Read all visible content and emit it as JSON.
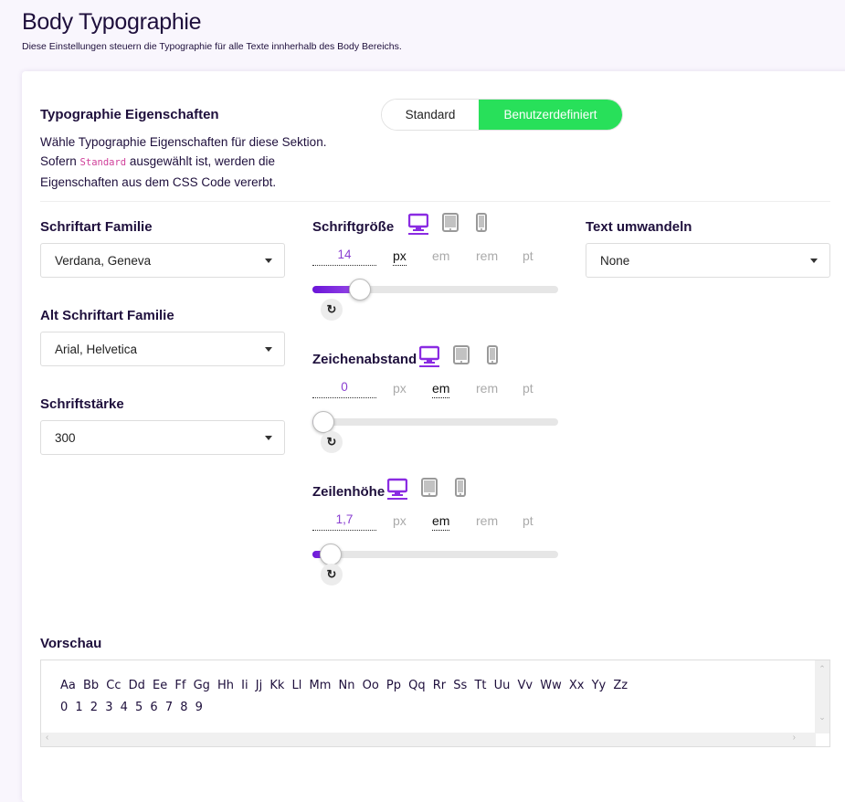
{
  "header": {
    "title": "Body Typographie",
    "subtitle": "Diese Einstellungen steuern die Typographie für alle Texte innherhalb des Body Bereichs."
  },
  "section": {
    "title": "Typographie Eigenschaften",
    "desc_line1": "Wähle Typographie Eigenschaften für diese Sektion.",
    "desc_line2_pre": "Sofern",
    "desc_line2_code": "Standard",
    "desc_line2_post": "ausgewählt ist, werden die",
    "desc_line3": "Eigenschaften aus dem CSS Code vererbt."
  },
  "toggle": {
    "options": [
      "Standard",
      "Benutzerdefiniert"
    ],
    "selected": "Benutzerdefiniert",
    "active_color": "#28e05a"
  },
  "selects": [
    {
      "label": "Schriftart Familie",
      "value": "Verdana, Geneva"
    },
    {
      "label": "Alt Schriftart Familie",
      "value": "Arial, Helvetica"
    },
    {
      "label": "Schriftstärke",
      "value": "300"
    },
    {
      "label": "Text umwandeln",
      "value": "None"
    }
  ],
  "devices": [
    "desktop-icon",
    "tablet-icon",
    "mobile-icon"
  ],
  "active_device": "desktop",
  "units": [
    "px",
    "em",
    "rem",
    "pt"
  ],
  "sliders": [
    {
      "label": "Schriftgröße",
      "value": "14",
      "unit": "px",
      "fraction": 0.15
    },
    {
      "label": "Zeichenabstand",
      "value": "0",
      "unit": "em",
      "fraction": 0
    },
    {
      "label": "Zeilenhöhe",
      "value": "1,7",
      "unit": "em",
      "fraction": 0.03
    }
  ],
  "reset_icon": "↻",
  "preview": {
    "label": "Vorschau",
    "letters": "Aa Bb Cc Dd Ee Ff Gg Hh Ii Jj Kk Ll Mm Nn Oo Pp Qq Rr Ss Tt Uu Vv Ww Xx Yy Zz",
    "digits": "0 1 2 3 4 5 6 7 8 9"
  },
  "accent": "#8a2be2"
}
